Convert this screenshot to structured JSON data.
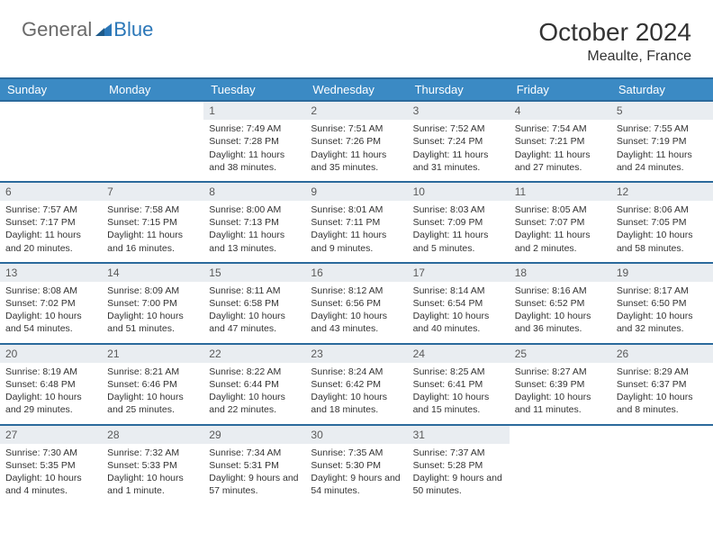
{
  "logo": {
    "general": "General",
    "blue": "Blue"
  },
  "title": "October 2024",
  "location": "Meaulte, France",
  "colors": {
    "header_bg": "#3b8ac4",
    "header_border": "#2b6a9c",
    "daynum_bg": "#e9edf1",
    "text": "#333333",
    "logo_gray": "#6a6a6a",
    "logo_blue": "#2b77b8"
  },
  "weekdays": [
    "Sunday",
    "Monday",
    "Tuesday",
    "Wednesday",
    "Thursday",
    "Friday",
    "Saturday"
  ],
  "weeks": [
    [
      {
        "n": "",
        "sr": "",
        "ss": "",
        "dl": ""
      },
      {
        "n": "",
        "sr": "",
        "ss": "",
        "dl": ""
      },
      {
        "n": "1",
        "sr": "Sunrise: 7:49 AM",
        "ss": "Sunset: 7:28 PM",
        "dl": "Daylight: 11 hours and 38 minutes."
      },
      {
        "n": "2",
        "sr": "Sunrise: 7:51 AM",
        "ss": "Sunset: 7:26 PM",
        "dl": "Daylight: 11 hours and 35 minutes."
      },
      {
        "n": "3",
        "sr": "Sunrise: 7:52 AM",
        "ss": "Sunset: 7:24 PM",
        "dl": "Daylight: 11 hours and 31 minutes."
      },
      {
        "n": "4",
        "sr": "Sunrise: 7:54 AM",
        "ss": "Sunset: 7:21 PM",
        "dl": "Daylight: 11 hours and 27 minutes."
      },
      {
        "n": "5",
        "sr": "Sunrise: 7:55 AM",
        "ss": "Sunset: 7:19 PM",
        "dl": "Daylight: 11 hours and 24 minutes."
      }
    ],
    [
      {
        "n": "6",
        "sr": "Sunrise: 7:57 AM",
        "ss": "Sunset: 7:17 PM",
        "dl": "Daylight: 11 hours and 20 minutes."
      },
      {
        "n": "7",
        "sr": "Sunrise: 7:58 AM",
        "ss": "Sunset: 7:15 PM",
        "dl": "Daylight: 11 hours and 16 minutes."
      },
      {
        "n": "8",
        "sr": "Sunrise: 8:00 AM",
        "ss": "Sunset: 7:13 PM",
        "dl": "Daylight: 11 hours and 13 minutes."
      },
      {
        "n": "9",
        "sr": "Sunrise: 8:01 AM",
        "ss": "Sunset: 7:11 PM",
        "dl": "Daylight: 11 hours and 9 minutes."
      },
      {
        "n": "10",
        "sr": "Sunrise: 8:03 AM",
        "ss": "Sunset: 7:09 PM",
        "dl": "Daylight: 11 hours and 5 minutes."
      },
      {
        "n": "11",
        "sr": "Sunrise: 8:05 AM",
        "ss": "Sunset: 7:07 PM",
        "dl": "Daylight: 11 hours and 2 minutes."
      },
      {
        "n": "12",
        "sr": "Sunrise: 8:06 AM",
        "ss": "Sunset: 7:05 PM",
        "dl": "Daylight: 10 hours and 58 minutes."
      }
    ],
    [
      {
        "n": "13",
        "sr": "Sunrise: 8:08 AM",
        "ss": "Sunset: 7:02 PM",
        "dl": "Daylight: 10 hours and 54 minutes."
      },
      {
        "n": "14",
        "sr": "Sunrise: 8:09 AM",
        "ss": "Sunset: 7:00 PM",
        "dl": "Daylight: 10 hours and 51 minutes."
      },
      {
        "n": "15",
        "sr": "Sunrise: 8:11 AM",
        "ss": "Sunset: 6:58 PM",
        "dl": "Daylight: 10 hours and 47 minutes."
      },
      {
        "n": "16",
        "sr": "Sunrise: 8:12 AM",
        "ss": "Sunset: 6:56 PM",
        "dl": "Daylight: 10 hours and 43 minutes."
      },
      {
        "n": "17",
        "sr": "Sunrise: 8:14 AM",
        "ss": "Sunset: 6:54 PM",
        "dl": "Daylight: 10 hours and 40 minutes."
      },
      {
        "n": "18",
        "sr": "Sunrise: 8:16 AM",
        "ss": "Sunset: 6:52 PM",
        "dl": "Daylight: 10 hours and 36 minutes."
      },
      {
        "n": "19",
        "sr": "Sunrise: 8:17 AM",
        "ss": "Sunset: 6:50 PM",
        "dl": "Daylight: 10 hours and 32 minutes."
      }
    ],
    [
      {
        "n": "20",
        "sr": "Sunrise: 8:19 AM",
        "ss": "Sunset: 6:48 PM",
        "dl": "Daylight: 10 hours and 29 minutes."
      },
      {
        "n": "21",
        "sr": "Sunrise: 8:21 AM",
        "ss": "Sunset: 6:46 PM",
        "dl": "Daylight: 10 hours and 25 minutes."
      },
      {
        "n": "22",
        "sr": "Sunrise: 8:22 AM",
        "ss": "Sunset: 6:44 PM",
        "dl": "Daylight: 10 hours and 22 minutes."
      },
      {
        "n": "23",
        "sr": "Sunrise: 8:24 AM",
        "ss": "Sunset: 6:42 PM",
        "dl": "Daylight: 10 hours and 18 minutes."
      },
      {
        "n": "24",
        "sr": "Sunrise: 8:25 AM",
        "ss": "Sunset: 6:41 PM",
        "dl": "Daylight: 10 hours and 15 minutes."
      },
      {
        "n": "25",
        "sr": "Sunrise: 8:27 AM",
        "ss": "Sunset: 6:39 PM",
        "dl": "Daylight: 10 hours and 11 minutes."
      },
      {
        "n": "26",
        "sr": "Sunrise: 8:29 AM",
        "ss": "Sunset: 6:37 PM",
        "dl": "Daylight: 10 hours and 8 minutes."
      }
    ],
    [
      {
        "n": "27",
        "sr": "Sunrise: 7:30 AM",
        "ss": "Sunset: 5:35 PM",
        "dl": "Daylight: 10 hours and 4 minutes."
      },
      {
        "n": "28",
        "sr": "Sunrise: 7:32 AM",
        "ss": "Sunset: 5:33 PM",
        "dl": "Daylight: 10 hours and 1 minute."
      },
      {
        "n": "29",
        "sr": "Sunrise: 7:34 AM",
        "ss": "Sunset: 5:31 PM",
        "dl": "Daylight: 9 hours and 57 minutes."
      },
      {
        "n": "30",
        "sr": "Sunrise: 7:35 AM",
        "ss": "Sunset: 5:30 PM",
        "dl": "Daylight: 9 hours and 54 minutes."
      },
      {
        "n": "31",
        "sr": "Sunrise: 7:37 AM",
        "ss": "Sunset: 5:28 PM",
        "dl": "Daylight: 9 hours and 50 minutes."
      },
      {
        "n": "",
        "sr": "",
        "ss": "",
        "dl": ""
      },
      {
        "n": "",
        "sr": "",
        "ss": "",
        "dl": ""
      }
    ]
  ]
}
